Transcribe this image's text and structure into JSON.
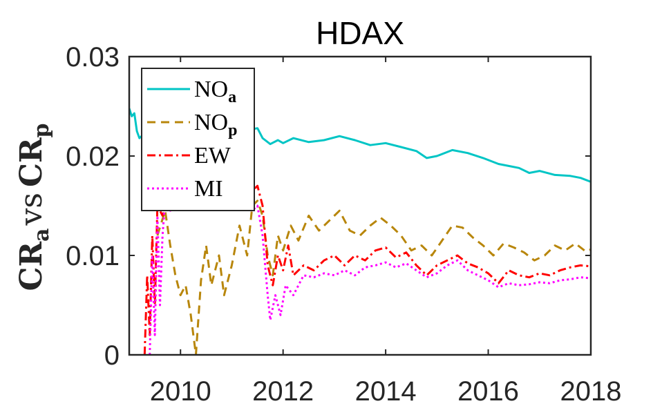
{
  "chart_data": {
    "type": "line",
    "title": "HDAX",
    "ylabel": "CR_a vs CR_p",
    "ylabel_parts": {
      "base1": "CR",
      "sub1": "a",
      "mid": "vs",
      "base2": "CR",
      "sub2": "p"
    },
    "xlim": [
      2009,
      2018
    ],
    "ylim": [
      0,
      0.03
    ],
    "xticks": [
      2010,
      2012,
      2014,
      2016,
      2018
    ],
    "xtick_labels": [
      "2010",
      "2012",
      "2014",
      "2016",
      "2018"
    ],
    "yticks": [
      0,
      0.01,
      0.02,
      0.03
    ],
    "ytick_labels": [
      "0",
      "0.01",
      "0.02",
      "0.03"
    ],
    "grid": false,
    "legend_position": "top-left",
    "series": [
      {
        "name": "NO_a",
        "legend_base": "NO",
        "legend_sub": "a",
        "color": "#00c5c5",
        "dash": "solid",
        "points": [
          [
            2009.0,
            0.0248
          ],
          [
            2009.05,
            0.024
          ],
          [
            2009.1,
            0.0243
          ],
          [
            2009.15,
            0.0225
          ],
          [
            2009.2,
            0.0218
          ],
          [
            2009.3,
            0.0223
          ],
          [
            2009.45,
            0.0224
          ],
          [
            2009.6,
            0.0222
          ],
          [
            2009.8,
            0.0223
          ],
          [
            2010.0,
            0.0225
          ],
          [
            2010.3,
            0.0225
          ],
          [
            2010.6,
            0.0226
          ],
          [
            2010.9,
            0.0225
          ],
          [
            2011.2,
            0.0225
          ],
          [
            2011.5,
            0.0228
          ],
          [
            2011.6,
            0.0218
          ],
          [
            2011.75,
            0.0212
          ],
          [
            2011.9,
            0.0216
          ],
          [
            2012.0,
            0.0213
          ],
          [
            2012.2,
            0.0218
          ],
          [
            2012.5,
            0.0214
          ],
          [
            2012.8,
            0.0216
          ],
          [
            2013.1,
            0.022
          ],
          [
            2013.4,
            0.0216
          ],
          [
            2013.7,
            0.0211
          ],
          [
            2014.0,
            0.0213
          ],
          [
            2014.3,
            0.0209
          ],
          [
            2014.6,
            0.0205
          ],
          [
            2014.8,
            0.0198
          ],
          [
            2015.0,
            0.02
          ],
          [
            2015.3,
            0.0206
          ],
          [
            2015.6,
            0.0203
          ],
          [
            2015.9,
            0.0198
          ],
          [
            2016.2,
            0.0192
          ],
          [
            2016.4,
            0.019
          ],
          [
            2016.6,
            0.0188
          ],
          [
            2016.8,
            0.0183
          ],
          [
            2017.0,
            0.0185
          ],
          [
            2017.3,
            0.0181
          ],
          [
            2017.6,
            0.018
          ],
          [
            2017.8,
            0.0178
          ],
          [
            2018.0,
            0.0174
          ]
        ]
      },
      {
        "name": "NO_p",
        "legend_base": "NO",
        "legend_sub": "p",
        "color": "#b8860b",
        "dash": "dashed",
        "points": [
          [
            2009.55,
            0.012
          ],
          [
            2009.7,
            0.0145
          ],
          [
            2009.8,
            0.011
          ],
          [
            2009.9,
            0.008
          ],
          [
            2010.0,
            0.006
          ],
          [
            2010.1,
            0.007
          ],
          [
            2010.2,
            0.004
          ],
          [
            2010.3,
            0.0
          ],
          [
            2010.4,
            0.0075
          ],
          [
            2010.5,
            0.011
          ],
          [
            2010.6,
            0.007
          ],
          [
            2010.75,
            0.01
          ],
          [
            2010.85,
            0.006
          ],
          [
            2011.0,
            0.009
          ],
          [
            2011.15,
            0.013
          ],
          [
            2011.3,
            0.01
          ],
          [
            2011.4,
            0.015
          ],
          [
            2011.5,
            0.0155
          ],
          [
            2011.6,
            0.014
          ],
          [
            2011.7,
            0.01
          ],
          [
            2011.8,
            0.008
          ],
          [
            2011.9,
            0.012
          ],
          [
            2012.0,
            0.0105
          ],
          [
            2012.15,
            0.013
          ],
          [
            2012.3,
            0.0115
          ],
          [
            2012.5,
            0.014
          ],
          [
            2012.7,
            0.0125
          ],
          [
            2012.9,
            0.0135
          ],
          [
            2013.1,
            0.0145
          ],
          [
            2013.3,
            0.0125
          ],
          [
            2013.5,
            0.012
          ],
          [
            2013.7,
            0.013
          ],
          [
            2013.9,
            0.0138
          ],
          [
            2014.1,
            0.013
          ],
          [
            2014.3,
            0.012
          ],
          [
            2014.5,
            0.0105
          ],
          [
            2014.7,
            0.011
          ],
          [
            2014.9,
            0.01
          ],
          [
            2015.1,
            0.0115
          ],
          [
            2015.3,
            0.013
          ],
          [
            2015.5,
            0.0128
          ],
          [
            2015.7,
            0.0118
          ],
          [
            2015.9,
            0.011
          ],
          [
            2016.1,
            0.01
          ],
          [
            2016.3,
            0.0112
          ],
          [
            2016.5,
            0.0108
          ],
          [
            2016.7,
            0.0103
          ],
          [
            2016.9,
            0.0095
          ],
          [
            2017.1,
            0.01
          ],
          [
            2017.3,
            0.011
          ],
          [
            2017.5,
            0.0105
          ],
          [
            2017.7,
            0.0112
          ],
          [
            2017.9,
            0.0104
          ],
          [
            2018.0,
            0.0106
          ]
        ]
      },
      {
        "name": "EW",
        "legend_base": "EW",
        "legend_sub": "",
        "color": "#ff0000",
        "dash": "dashdot",
        "points": [
          [
            2009.3,
            0.0
          ],
          [
            2009.35,
            0.008
          ],
          [
            2009.4,
            0.002
          ],
          [
            2009.45,
            0.012
          ],
          [
            2009.5,
            0.005
          ],
          [
            2009.55,
            0.015
          ],
          [
            2009.65,
            0.014
          ],
          [
            2009.8,
            0.016
          ],
          [
            2010.0,
            0.0155
          ],
          [
            2010.3,
            0.0165
          ],
          [
            2010.6,
            0.016
          ],
          [
            2010.9,
            0.0158
          ],
          [
            2011.2,
            0.0155
          ],
          [
            2011.4,
            0.0165
          ],
          [
            2011.5,
            0.017
          ],
          [
            2011.6,
            0.015
          ],
          [
            2011.7,
            0.009
          ],
          [
            2011.8,
            0.007
          ],
          [
            2011.9,
            0.01
          ],
          [
            2012.0,
            0.0085
          ],
          [
            2012.1,
            0.011
          ],
          [
            2012.2,
            0.008
          ],
          [
            2012.4,
            0.009
          ],
          [
            2012.6,
            0.0085
          ],
          [
            2012.8,
            0.0095
          ],
          [
            2013.0,
            0.01
          ],
          [
            2013.2,
            0.009
          ],
          [
            2013.4,
            0.01
          ],
          [
            2013.6,
            0.0095
          ],
          [
            2013.8,
            0.0105
          ],
          [
            2014.0,
            0.0108
          ],
          [
            2014.2,
            0.0098
          ],
          [
            2014.4,
            0.0103
          ],
          [
            2014.6,
            0.009
          ],
          [
            2014.8,
            0.008
          ],
          [
            2015.0,
            0.009
          ],
          [
            2015.2,
            0.0095
          ],
          [
            2015.4,
            0.01
          ],
          [
            2015.6,
            0.0092
          ],
          [
            2015.8,
            0.0088
          ],
          [
            2016.0,
            0.0082
          ],
          [
            2016.2,
            0.0072
          ],
          [
            2016.4,
            0.0085
          ],
          [
            2016.6,
            0.008
          ],
          [
            2016.8,
            0.0078
          ],
          [
            2017.0,
            0.0082
          ],
          [
            2017.2,
            0.008
          ],
          [
            2017.4,
            0.0085
          ],
          [
            2017.6,
            0.0088
          ],
          [
            2017.8,
            0.009
          ],
          [
            2018.0,
            0.0089
          ]
        ]
      },
      {
        "name": "MI",
        "legend_base": "MI",
        "legend_sub": "",
        "color": "#ff00ff",
        "dash": "dotted",
        "points": [
          [
            2009.4,
            0.0
          ],
          [
            2009.45,
            0.01
          ],
          [
            2009.5,
            0.002
          ],
          [
            2009.55,
            0.014
          ],
          [
            2009.6,
            0.005
          ],
          [
            2009.65,
            0.012
          ],
          [
            2009.7,
            0.0155
          ],
          [
            2009.8,
            0.0145
          ],
          [
            2010.0,
            0.015
          ],
          [
            2010.3,
            0.015
          ],
          [
            2010.6,
            0.0148
          ],
          [
            2010.9,
            0.015
          ],
          [
            2011.2,
            0.0148
          ],
          [
            2011.4,
            0.0145
          ],
          [
            2011.5,
            0.015
          ],
          [
            2011.6,
            0.012
          ],
          [
            2011.7,
            0.006
          ],
          [
            2011.75,
            0.0035
          ],
          [
            2011.85,
            0.006
          ],
          [
            2011.95,
            0.004
          ],
          [
            2012.05,
            0.007
          ],
          [
            2012.2,
            0.006
          ],
          [
            2012.4,
            0.008
          ],
          [
            2012.6,
            0.0078
          ],
          [
            2012.8,
            0.0082
          ],
          [
            2013.0,
            0.008
          ],
          [
            2013.2,
            0.0085
          ],
          [
            2013.4,
            0.008
          ],
          [
            2013.6,
            0.0088
          ],
          [
            2013.8,
            0.009
          ],
          [
            2014.0,
            0.0093
          ],
          [
            2014.2,
            0.0088
          ],
          [
            2014.4,
            0.0092
          ],
          [
            2014.6,
            0.0085
          ],
          [
            2014.8,
            0.0078
          ],
          [
            2015.0,
            0.0082
          ],
          [
            2015.2,
            0.009
          ],
          [
            2015.4,
            0.0095
          ],
          [
            2015.6,
            0.0085
          ],
          [
            2015.8,
            0.008
          ],
          [
            2016.0,
            0.0075
          ],
          [
            2016.2,
            0.0068
          ],
          [
            2016.4,
            0.0072
          ],
          [
            2016.6,
            0.007
          ],
          [
            2016.8,
            0.0071
          ],
          [
            2017.0,
            0.0073
          ],
          [
            2017.2,
            0.0072
          ],
          [
            2017.4,
            0.0075
          ],
          [
            2017.6,
            0.0076
          ],
          [
            2017.8,
            0.0078
          ],
          [
            2018.0,
            0.0077
          ]
        ]
      }
    ]
  }
}
